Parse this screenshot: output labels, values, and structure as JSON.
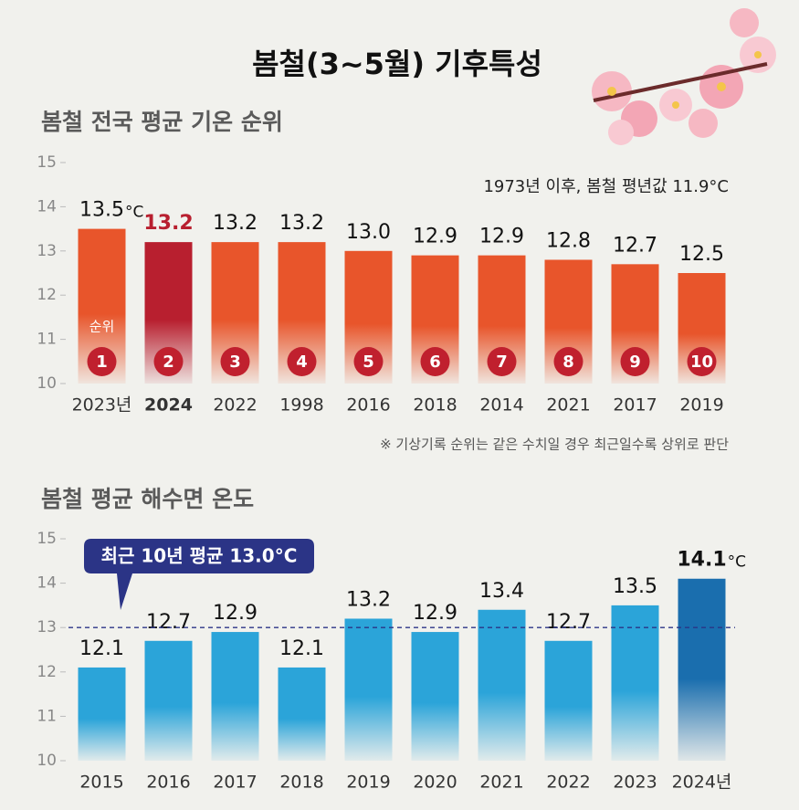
{
  "title": "봄철(3~5월) 기후특성",
  "chart_data": [
    {
      "type": "bar",
      "title": "봄철 전국 평균 기온 순위",
      "note": "1973년 이후, 봄철 평년값 11.9°C",
      "unit": "°C",
      "categories": [
        "2023년",
        "2024",
        "2022",
        "1998",
        "2016",
        "2018",
        "2014",
        "2021",
        "2017",
        "2019"
      ],
      "values": [
        13.5,
        13.2,
        13.2,
        13.2,
        13.0,
        12.9,
        12.9,
        12.8,
        12.7,
        12.5
      ],
      "value_labels": [
        "13.5",
        "13.2",
        "13.2",
        "13.2",
        "13.0",
        "12.9",
        "12.9",
        "12.8",
        "12.7",
        "12.5"
      ],
      "colors": [
        "#e8552b",
        "#b81f2f",
        "#e8552b",
        "#e8552b",
        "#e8552b",
        "#e8552b",
        "#e8552b",
        "#e8552b",
        "#e8552b",
        "#e8552b"
      ],
      "rank_label": "순위",
      "ranks": [
        1,
        2,
        3,
        4,
        5,
        6,
        7,
        8,
        9,
        10
      ],
      "footnote": "※ 기상기록 순위는 같은 수치일 경우 최근일수록 상위로 판단",
      "ylim": [
        10,
        15
      ],
      "yticks": [
        10,
        11,
        12,
        13,
        14,
        15
      ]
    },
    {
      "type": "bar",
      "title": "봄철 평균 해수면 온도",
      "unit": "°C",
      "categories": [
        "2015",
        "2016",
        "2017",
        "2018",
        "2019",
        "2020",
        "2021",
        "2022",
        "2023",
        "2024년"
      ],
      "values": [
        12.1,
        12.7,
        12.9,
        12.1,
        13.2,
        12.9,
        13.4,
        12.7,
        13.5,
        14.1
      ],
      "colors": [
        "#2ba4d9",
        "#2ba4d9",
        "#2ba4d9",
        "#2ba4d9",
        "#2ba4d9",
        "#2ba4d9",
        "#2ba4d9",
        "#2ba4d9",
        "#2ba4d9",
        "#1a6eae"
      ],
      "reference": {
        "value": 13.0,
        "label": "최근 10년 평균 13.0°C",
        "color": "#2b3486"
      },
      "ylim": [
        10,
        15
      ],
      "yticks": [
        10,
        11,
        12,
        13,
        14,
        15
      ]
    }
  ]
}
